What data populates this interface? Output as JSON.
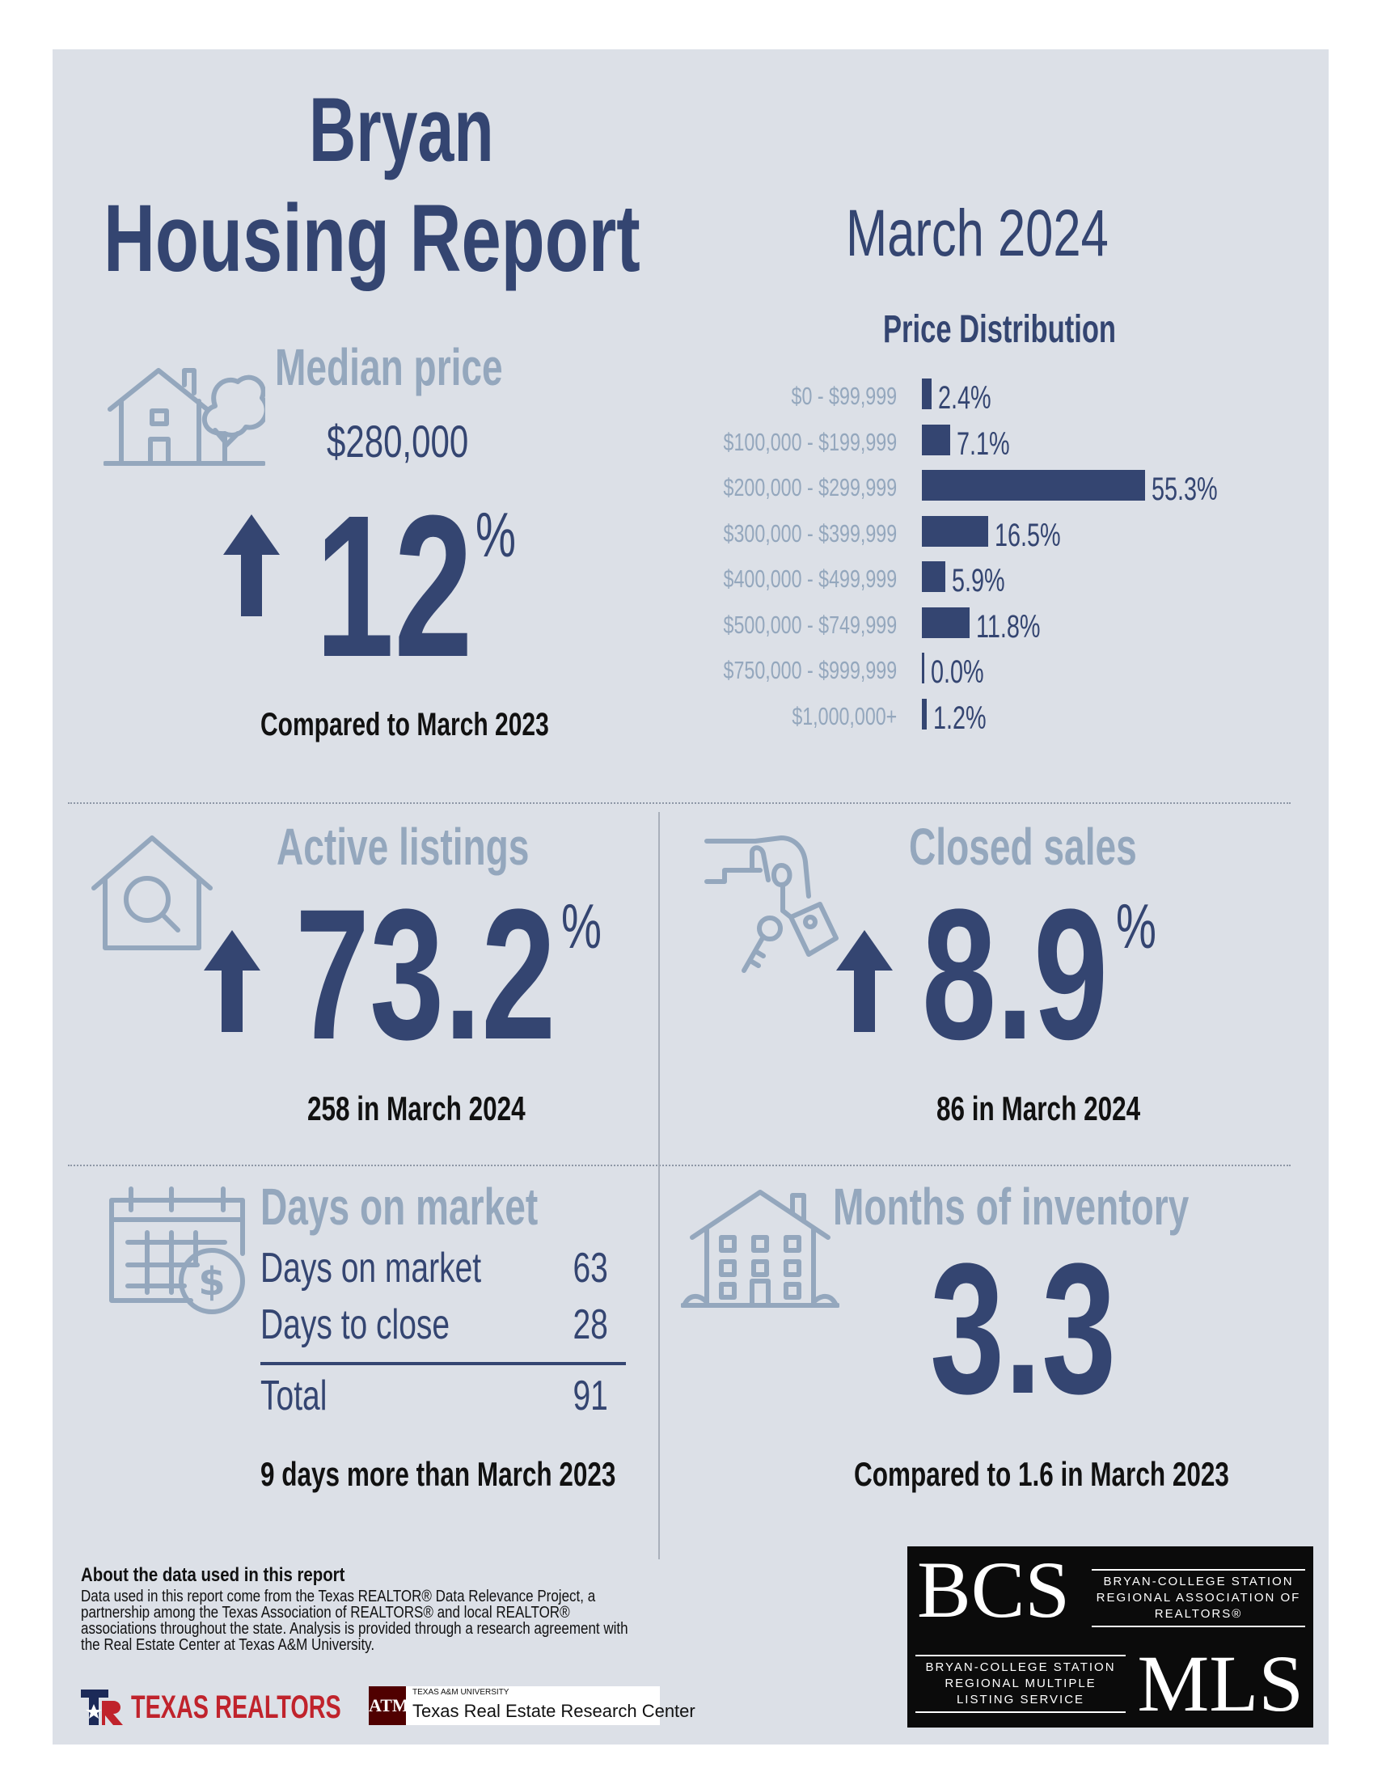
{
  "header": {
    "city": "Bryan",
    "title": "Housing Report",
    "date": "March 2024"
  },
  "median_price": {
    "label": "Median price",
    "value": "$280,000",
    "change": "12",
    "unit": "%",
    "direction": "up",
    "compare": "Compared to March 2023"
  },
  "price_distribution": {
    "title": "Price Distribution",
    "rows": [
      {
        "range": "$0 - $99,999",
        "value": "2.4%",
        "pct": 2.4
      },
      {
        "range": "$100,000 - $199,999",
        "value": "7.1%",
        "pct": 7.1
      },
      {
        "range": "$200,000 - $299,999",
        "value": "55.3%",
        "pct": 55.3
      },
      {
        "range": "$300,000 - $399,999",
        "value": "16.5%",
        "pct": 16.5
      },
      {
        "range": "$400,000 - $499,999",
        "value": "5.9%",
        "pct": 5.9
      },
      {
        "range": "$500,000 - $749,999",
        "value": "11.8%",
        "pct": 11.8
      },
      {
        "range": "$750,000 - $999,999",
        "value": "0.0%",
        "pct": 0.0
      },
      {
        "range": "$1,000,000+",
        "value": "1.2%",
        "pct": 1.2
      }
    ]
  },
  "active_listings": {
    "label": "Active listings",
    "change": "73.2",
    "unit": "%",
    "direction": "up",
    "count_text": "258 in March 2024"
  },
  "closed_sales": {
    "label": "Closed sales",
    "change": "8.9",
    "unit": "%",
    "direction": "up",
    "count_text": "86 in March 2024"
  },
  "days_on_market": {
    "label": "Days on market",
    "rows": [
      {
        "label": "Days on market",
        "value": "63"
      },
      {
        "label": "Days to close",
        "value": "28"
      }
    ],
    "total_label": "Total",
    "total_value": "91",
    "compare": "9 days more than March 2023"
  },
  "months_inventory": {
    "label": "Months of inventory",
    "value": "3.3",
    "compare": "Compared to 1.6 in March 2023"
  },
  "footer": {
    "about_title": "About the data used in this report",
    "about_text": "Data used in this report come from the Texas REALTOR® Data Relevance Project, a partnership among the Texas Association of REALTORS® and local REALTOR® associations throughout the state. Analysis is provided through a research agreement with the Real Estate Center at Texas A&M University.",
    "texas_realtors": "TEXAS REALTORS",
    "tamu_small": "TEXAS A&M UNIVERSITY",
    "tamu_mark": "ATM",
    "tamu_name": "Texas Real Estate Research Center",
    "bcs": "BCS",
    "bcs_assoc": "BRYAN-COLLEGE STATION REGIONAL ASSOCIATION OF REALTORS®",
    "bcs_mls_text": "BRYAN-COLLEGE STATION REGIONAL MULTIPLE LISTING SERVICE",
    "mls": "MLS"
  },
  "colors": {
    "navy": "#344571",
    "light": "#94a7bd",
    "panel": "#dce0e7",
    "realtors_red": "#c0232c",
    "tamu_maroon": "#500000"
  },
  "icons": [
    "house-tree-icon",
    "up-arrow-icon",
    "house-search-icon",
    "hand-keys-icon",
    "calendar-dollar-icon",
    "apartment-building-icon"
  ]
}
